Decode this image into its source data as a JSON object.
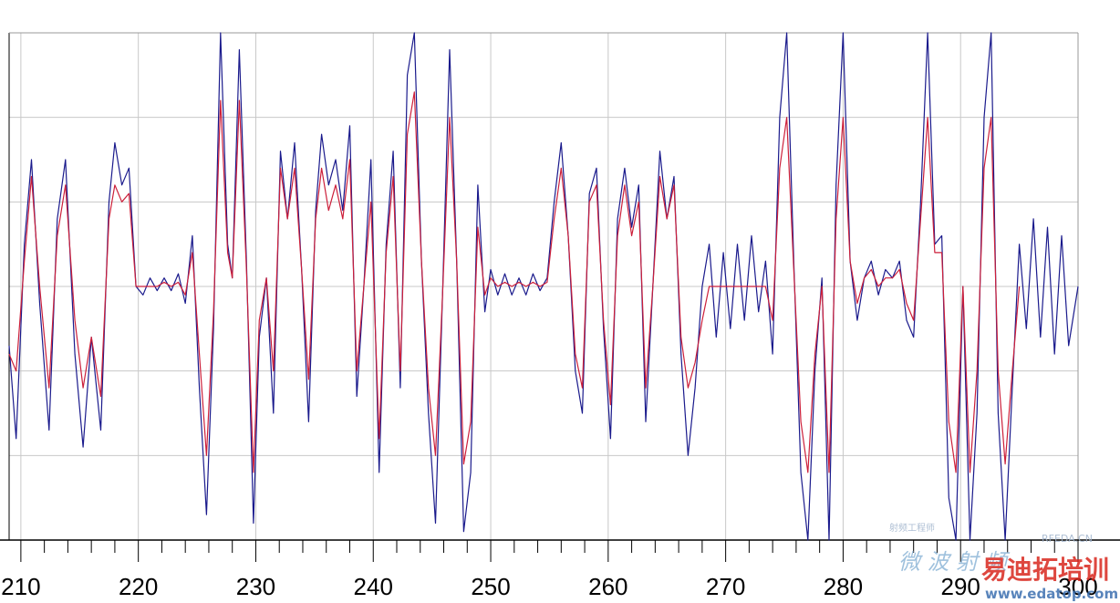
{
  "chart_data": {
    "type": "line",
    "title": "",
    "xlabel": "",
    "ylabel": "",
    "xlim": [
      209,
      300
    ],
    "ylim": [
      -3,
      3
    ],
    "x_ticks": [
      210,
      220,
      230,
      240,
      250,
      260,
      270,
      280,
      290,
      300
    ],
    "x_tick_labels": [
      "210",
      "220",
      "230",
      "240",
      "250",
      "260",
      "270",
      "280",
      "290",
      "300"
    ],
    "y_gridlines": [
      -3,
      -2,
      -1,
      0,
      1,
      2,
      3
    ],
    "grid": true,
    "colors": {
      "blue": "#1a1a8c",
      "red": "#cc1f3a",
      "grid": "#c8c8c8",
      "axis": "#000000"
    },
    "series": [
      {
        "color": "blue",
        "points": [
          [
            209.0,
            -0.7
          ],
          [
            209.6,
            -1.8
          ],
          [
            210.3,
            0.5
          ],
          [
            210.9,
            1.5
          ],
          [
            211.6,
            -0.2
          ],
          [
            212.4,
            -1.7
          ],
          [
            213.1,
            0.8
          ],
          [
            213.8,
            1.5
          ],
          [
            214.6,
            -0.8
          ],
          [
            215.3,
            -1.9
          ],
          [
            216.0,
            -0.6
          ],
          [
            216.8,
            -1.7
          ],
          [
            217.5,
            1.0
          ],
          [
            218.0,
            1.7
          ],
          [
            218.6,
            1.2
          ],
          [
            219.2,
            1.4
          ],
          [
            219.8,
            0.0
          ],
          [
            220.4,
            -0.1
          ],
          [
            221.0,
            0.1
          ],
          [
            221.6,
            -0.05
          ],
          [
            222.2,
            0.1
          ],
          [
            222.8,
            -0.05
          ],
          [
            223.4,
            0.15
          ],
          [
            224.0,
            -0.2
          ],
          [
            224.6,
            0.6
          ],
          [
            225.2,
            -1.2
          ],
          [
            225.8,
            -2.7
          ],
          [
            226.4,
            -0.5
          ],
          [
            227.0,
            3.0
          ],
          [
            227.6,
            0.5
          ],
          [
            228.0,
            0.1
          ],
          [
            228.6,
            2.8
          ],
          [
            229.2,
            0.3
          ],
          [
            229.8,
            -2.8
          ],
          [
            230.3,
            -0.6
          ],
          [
            230.9,
            0.1
          ],
          [
            231.5,
            -1.5
          ],
          [
            232.1,
            1.6
          ],
          [
            232.7,
            0.8
          ],
          [
            233.3,
            1.7
          ],
          [
            233.9,
            0.2
          ],
          [
            234.5,
            -1.6
          ],
          [
            235.1,
            0.9
          ],
          [
            235.6,
            1.8
          ],
          [
            236.2,
            1.2
          ],
          [
            236.8,
            1.5
          ],
          [
            237.4,
            0.9
          ],
          [
            238.0,
            1.9
          ],
          [
            238.6,
            -1.3
          ],
          [
            239.2,
            0.0
          ],
          [
            239.8,
            1.5
          ],
          [
            240.5,
            -2.2
          ],
          [
            241.1,
            0.5
          ],
          [
            241.7,
            1.6
          ],
          [
            242.3,
            -1.2
          ],
          [
            242.9,
            2.5
          ],
          [
            243.5,
            3.0
          ],
          [
            244.1,
            0.3
          ],
          [
            244.7,
            -1.5
          ],
          [
            245.3,
            -2.8
          ],
          [
            245.9,
            -0.1
          ],
          [
            246.5,
            2.8
          ],
          [
            247.1,
            0.3
          ],
          [
            247.7,
            -2.9
          ],
          [
            248.3,
            -2.2
          ],
          [
            248.9,
            1.2
          ],
          [
            249.5,
            -0.3
          ],
          [
            250.0,
            0.2
          ],
          [
            250.6,
            -0.1
          ],
          [
            251.2,
            0.15
          ],
          [
            251.8,
            -0.1
          ],
          [
            252.4,
            0.1
          ],
          [
            253.0,
            -0.1
          ],
          [
            253.6,
            0.15
          ],
          [
            254.2,
            -0.05
          ],
          [
            254.8,
            0.1
          ],
          [
            255.4,
            1.0
          ],
          [
            256.0,
            1.7
          ],
          [
            256.6,
            0.6
          ],
          [
            257.2,
            -1.0
          ],
          [
            257.8,
            -1.5
          ],
          [
            258.4,
            1.1
          ],
          [
            259.0,
            1.4
          ],
          [
            259.6,
            -0.5
          ],
          [
            260.2,
            -1.8
          ],
          [
            260.8,
            0.8
          ],
          [
            261.4,
            1.4
          ],
          [
            262.0,
            0.7
          ],
          [
            262.6,
            1.2
          ],
          [
            263.2,
            -1.6
          ],
          [
            263.8,
            0.0
          ],
          [
            264.4,
            1.6
          ],
          [
            265.0,
            0.8
          ],
          [
            265.6,
            1.3
          ],
          [
            266.2,
            -0.8
          ],
          [
            266.8,
            -2.0
          ],
          [
            267.4,
            -1.2
          ],
          [
            268.0,
            0.0
          ],
          [
            268.6,
            0.5
          ],
          [
            269.2,
            -0.6
          ],
          [
            269.8,
            0.4
          ],
          [
            270.4,
            -0.5
          ],
          [
            271.0,
            0.5
          ],
          [
            271.6,
            -0.4
          ],
          [
            272.2,
            0.6
          ],
          [
            272.8,
            -0.3
          ],
          [
            273.4,
            0.3
          ],
          [
            274.0,
            -0.8
          ],
          [
            274.6,
            2.0
          ],
          [
            275.2,
            3.0
          ],
          [
            275.8,
            0.3
          ],
          [
            276.4,
            -2.2
          ],
          [
            277.0,
            -3.0
          ],
          [
            277.6,
            -1.0
          ],
          [
            278.2,
            0.1
          ],
          [
            278.8,
            -3.0
          ],
          [
            279.4,
            1.2
          ],
          [
            280.0,
            3.0
          ],
          [
            280.6,
            0.3
          ],
          [
            281.2,
            -0.4
          ],
          [
            281.8,
            0.1
          ],
          [
            282.4,
            0.3
          ],
          [
            283.0,
            -0.1
          ],
          [
            283.6,
            0.2
          ],
          [
            284.2,
            0.1
          ],
          [
            284.8,
            0.3
          ],
          [
            285.4,
            -0.4
          ],
          [
            286.0,
            -0.6
          ],
          [
            286.6,
            1.0
          ],
          [
            287.2,
            3.0
          ],
          [
            287.8,
            0.5
          ],
          [
            288.4,
            0.6
          ],
          [
            289.0,
            -2.5
          ],
          [
            289.6,
            -3.0
          ],
          [
            290.2,
            0.0
          ],
          [
            290.8,
            -3.0
          ],
          [
            291.4,
            -1.5
          ],
          [
            292.0,
            2.0
          ],
          [
            292.6,
            3.0
          ],
          [
            293.2,
            -1.5
          ],
          [
            293.8,
            -3.0
          ],
          [
            294.4,
            -1.2
          ],
          [
            295.0,
            0.5
          ],
          [
            295.6,
            -0.5
          ],
          [
            296.2,
            0.8
          ],
          [
            296.8,
            -0.6
          ],
          [
            297.4,
            0.7
          ],
          [
            298.0,
            -0.8
          ],
          [
            298.6,
            0.6
          ],
          [
            299.2,
            -0.7
          ],
          [
            300.0,
            0.0
          ]
        ]
      },
      {
        "color": "red",
        "points": [
          [
            209.0,
            -0.8
          ],
          [
            209.6,
            -1.0
          ],
          [
            210.3,
            0.3
          ],
          [
            210.9,
            1.3
          ],
          [
            211.6,
            0.0
          ],
          [
            212.4,
            -1.2
          ],
          [
            213.1,
            0.6
          ],
          [
            213.8,
            1.2
          ],
          [
            214.6,
            -0.4
          ],
          [
            215.3,
            -1.2
          ],
          [
            216.0,
            -0.6
          ],
          [
            216.8,
            -1.3
          ],
          [
            217.5,
            0.8
          ],
          [
            218.0,
            1.2
          ],
          [
            218.6,
            1.0
          ],
          [
            219.2,
            1.1
          ],
          [
            219.8,
            0.0
          ],
          [
            220.4,
            0.0
          ],
          [
            221.0,
            0.0
          ],
          [
            221.6,
            0.0
          ],
          [
            222.2,
            0.05
          ],
          [
            222.8,
            0.0
          ],
          [
            223.4,
            0.05
          ],
          [
            224.0,
            -0.1
          ],
          [
            224.6,
            0.4
          ],
          [
            225.2,
            -0.8
          ],
          [
            225.8,
            -2.0
          ],
          [
            226.4,
            -0.3
          ],
          [
            227.0,
            2.2
          ],
          [
            227.6,
            0.4
          ],
          [
            228.0,
            0.1
          ],
          [
            228.6,
            2.2
          ],
          [
            229.2,
            0.2
          ],
          [
            229.8,
            -2.2
          ],
          [
            230.3,
            -0.4
          ],
          [
            230.9,
            0.1
          ],
          [
            231.5,
            -1.0
          ],
          [
            232.1,
            1.4
          ],
          [
            232.7,
            0.8
          ],
          [
            233.3,
            1.4
          ],
          [
            233.9,
            0.2
          ],
          [
            234.5,
            -1.1
          ],
          [
            235.1,
            0.8
          ],
          [
            235.6,
            1.4
          ],
          [
            236.2,
            0.9
          ],
          [
            236.8,
            1.2
          ],
          [
            237.4,
            0.8
          ],
          [
            238.0,
            1.5
          ],
          [
            238.6,
            -1.0
          ],
          [
            239.2,
            0.0
          ],
          [
            239.8,
            1.0
          ],
          [
            240.5,
            -1.8
          ],
          [
            241.1,
            0.4
          ],
          [
            241.7,
            1.3
          ],
          [
            242.3,
            -1.0
          ],
          [
            242.9,
            1.8
          ],
          [
            243.5,
            2.3
          ],
          [
            244.1,
            0.3
          ],
          [
            244.7,
            -1.2
          ],
          [
            245.3,
            -2.0
          ],
          [
            245.9,
            -0.1
          ],
          [
            246.5,
            2.0
          ],
          [
            247.1,
            0.3
          ],
          [
            247.7,
            -2.1
          ],
          [
            248.3,
            -1.6
          ],
          [
            248.9,
            0.7
          ],
          [
            249.5,
            -0.1
          ],
          [
            250.0,
            0.1
          ],
          [
            250.6,
            0.0
          ],
          [
            251.2,
            0.05
          ],
          [
            251.8,
            0.0
          ],
          [
            252.4,
            0.05
          ],
          [
            253.0,
            0.0
          ],
          [
            253.6,
            0.05
          ],
          [
            254.2,
            0.0
          ],
          [
            254.8,
            0.05
          ],
          [
            255.4,
            0.8
          ],
          [
            256.0,
            1.4
          ],
          [
            256.6,
            0.6
          ],
          [
            257.2,
            -0.8
          ],
          [
            257.8,
            -1.2
          ],
          [
            258.4,
            1.0
          ],
          [
            259.0,
            1.2
          ],
          [
            259.6,
            -0.4
          ],
          [
            260.2,
            -1.4
          ],
          [
            260.8,
            0.6
          ],
          [
            261.4,
            1.2
          ],
          [
            262.0,
            0.6
          ],
          [
            262.6,
            1.0
          ],
          [
            263.2,
            -1.2
          ],
          [
            263.8,
            0.0
          ],
          [
            264.4,
            1.3
          ],
          [
            265.0,
            0.8
          ],
          [
            265.6,
            1.2
          ],
          [
            266.2,
            -0.6
          ],
          [
            266.8,
            -1.2
          ],
          [
            267.4,
            -0.9
          ],
          [
            268.0,
            -0.4
          ],
          [
            268.6,
            0.0
          ],
          [
            269.2,
            0.0
          ],
          [
            269.8,
            0.0
          ],
          [
            270.4,
            0.0
          ],
          [
            271.0,
            0.0
          ],
          [
            271.6,
            0.0
          ],
          [
            272.2,
            0.0
          ],
          [
            272.8,
            0.0
          ],
          [
            273.4,
            0.0
          ],
          [
            274.0,
            -0.4
          ],
          [
            274.6,
            1.4
          ],
          [
            275.2,
            2.0
          ],
          [
            275.8,
            0.2
          ],
          [
            276.4,
            -1.6
          ],
          [
            277.0,
            -2.2
          ],
          [
            277.6,
            -0.8
          ],
          [
            278.2,
            0.0
          ],
          [
            278.8,
            -2.2
          ],
          [
            279.4,
            0.8
          ],
          [
            280.0,
            2.0
          ],
          [
            280.6,
            0.3
          ],
          [
            281.2,
            -0.2
          ],
          [
            281.8,
            0.1
          ],
          [
            282.4,
            0.2
          ],
          [
            283.0,
            0.0
          ],
          [
            283.6,
            0.1
          ],
          [
            284.2,
            0.1
          ],
          [
            284.8,
            0.2
          ],
          [
            285.4,
            -0.2
          ],
          [
            286.0,
            -0.4
          ],
          [
            286.6,
            0.8
          ],
          [
            287.2,
            2.0
          ],
          [
            287.8,
            0.4
          ],
          [
            288.4,
            0.4
          ],
          [
            289.0,
            -1.6
          ],
          [
            289.6,
            -2.2
          ],
          [
            290.2,
            0.0
          ],
          [
            290.8,
            -2.2
          ],
          [
            291.4,
            -1.0
          ],
          [
            292.0,
            1.4
          ],
          [
            292.6,
            2.0
          ],
          [
            293.2,
            -1.0
          ],
          [
            293.8,
            -2.1
          ],
          [
            294.4,
            -1.0
          ],
          [
            295.0,
            0.0
          ]
        ]
      }
    ]
  },
  "watermark": {
    "left_text": "微 波 射 频",
    "brand_text": "易迪拓培训",
    "url_text": "www.edatop.com",
    "site_tag": "RFEDA.CN",
    "small_text": "射频工程师"
  }
}
